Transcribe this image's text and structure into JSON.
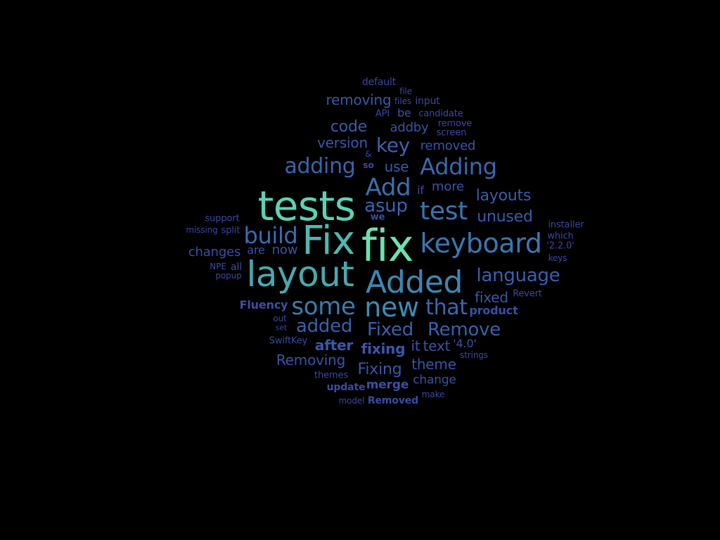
{
  "word_cloud": {
    "words": [
      {
        "id": "fix",
        "text": "fix",
        "color": "#6fe0b0"
      },
      {
        "id": "tests",
        "text": "tests",
        "color": "#5ed1b4"
      },
      {
        "id": "Fix",
        "text": "Fix",
        "color": "#4fb8b0"
      },
      {
        "id": "layout",
        "text": "layout",
        "color": "#4aa9b0"
      },
      {
        "id": "Added",
        "text": "Added",
        "color": "#3d88b4"
      },
      {
        "id": "new",
        "text": "new",
        "color": "#3d8cb4"
      },
      {
        "id": "some",
        "text": "some",
        "color": "#3a7cb0"
      },
      {
        "id": "keyboard",
        "text": "keyboard",
        "color": "#3a78b2"
      },
      {
        "id": "test",
        "text": "test",
        "color": "#3a74b0"
      },
      {
        "id": "Add",
        "text": "Add",
        "color": "#3a70ae"
      },
      {
        "id": "build",
        "text": "build",
        "color": "#3a6cb0"
      },
      {
        "id": "Adding",
        "text": "Adding",
        "color": "#3a68ae"
      },
      {
        "id": "adding",
        "text": "adding",
        "color": "#3a64ac"
      },
      {
        "id": "that",
        "text": "that",
        "color": "#3a68b0"
      },
      {
        "id": "key",
        "text": "key",
        "color": "#3a64ae"
      },
      {
        "id": "asup",
        "text": "asup",
        "color": "#3a64ae"
      },
      {
        "id": "language",
        "text": "language",
        "color": "#3a60ac"
      },
      {
        "id": "Fixed",
        "text": "Fixed",
        "color": "#3a60ac"
      },
      {
        "id": "Remove",
        "text": "Remove",
        "color": "#3a60ac"
      },
      {
        "id": "added",
        "text": "added",
        "color": "#3a60ac"
      },
      {
        "id": "layouts",
        "text": "layouts",
        "color": "#3a5caa"
      },
      {
        "id": "unused",
        "text": "unused",
        "color": "#3a5caa"
      },
      {
        "id": "code",
        "text": "code",
        "color": "#3a5caa"
      },
      {
        "id": "fixing",
        "text": "fixing",
        "color": "#3a58a8"
      },
      {
        "id": "Fixing",
        "text": "Fixing",
        "color": "#3a58a8"
      },
      {
        "id": "after",
        "text": "after",
        "color": "#3a58a8"
      },
      {
        "id": "version",
        "text": "version",
        "color": "#3a58a8"
      },
      {
        "id": "use",
        "text": "use",
        "color": "#3a58a8"
      },
      {
        "id": "removing",
        "text": "removing",
        "color": "#3a58a8"
      },
      {
        "id": "fixed",
        "text": "fixed",
        "color": "#3a58a8"
      },
      {
        "id": "Removing",
        "text": "Removing",
        "color": "#3a54a6"
      },
      {
        "id": "text",
        "text": "text",
        "color": "#3a54a6"
      },
      {
        "id": "theme",
        "text": "theme",
        "color": "#3a54a6"
      },
      {
        "id": "addby",
        "text": "addby",
        "color": "#3a54a6"
      },
      {
        "id": "it",
        "text": "it",
        "color": "#3a54a6"
      },
      {
        "id": "more",
        "text": "more",
        "color": "#3a54a6"
      },
      {
        "id": "removed",
        "text": "removed",
        "color": "#3a54a6"
      },
      {
        "id": "now",
        "text": "now",
        "color": "#3a54a6"
      },
      {
        "id": "changes",
        "text": "changes",
        "color": "#3a50a4"
      },
      {
        "id": "change",
        "text": "change",
        "color": "#3a50a4"
      },
      {
        "id": "merge",
        "text": "merge",
        "color": "#3a50a4"
      },
      {
        "id": "product",
        "text": "product",
        "color": "#3a50a4"
      },
      {
        "id": "Fluency",
        "text": "Fluency",
        "color": "#3a50a4"
      },
      {
        "id": "4.0",
        "text": "'4.0'",
        "color": "#3a50a4"
      },
      {
        "id": "be",
        "text": "be",
        "color": "#3a50a4"
      },
      {
        "id": "if",
        "text": "if",
        "color": "#3a50a4"
      },
      {
        "id": "are",
        "text": "are",
        "color": "#3a50a4"
      },
      {
        "id": "update",
        "text": "update",
        "color": "#3a4ca2"
      },
      {
        "id": "Removed",
        "text": "Removed",
        "color": "#3a4ca2"
      },
      {
        "id": "all",
        "text": "all",
        "color": "#3a4ca2"
      },
      {
        "id": "we",
        "text": "we",
        "color": "#3a4ca2"
      },
      {
        "id": "so",
        "text": "so",
        "color": "#3a4ca2"
      },
      {
        "id": "default",
        "text": "default",
        "color": "#3a48a0"
      },
      {
        "id": "file",
        "text": "file",
        "color": "#3a48a0"
      },
      {
        "id": "files",
        "text": "files",
        "color": "#3a48a0"
      },
      {
        "id": "input",
        "text": "input",
        "color": "#3a48a0"
      },
      {
        "id": "API",
        "text": "API",
        "color": "#3a48a0"
      },
      {
        "id": "candidate",
        "text": "candidate",
        "color": "#3a48a0"
      },
      {
        "id": "remove",
        "text": "remove",
        "color": "#3a48a0"
      },
      {
        "id": "screen",
        "text": "screen",
        "color": "#3a48a0"
      },
      {
        "id": "amp",
        "text": "&",
        "color": "#3a48a0"
      },
      {
        "id": "support",
        "text": "support",
        "color": "#3a48a0"
      },
      {
        "id": "missing",
        "text": "missing",
        "color": "#3a48a0"
      },
      {
        "id": "split",
        "text": "split",
        "color": "#3a48a0"
      },
      {
        "id": "NPE",
        "text": "NPE",
        "color": "#3a48a0"
      },
      {
        "id": "popup",
        "text": "popup",
        "color": "#3a48a0"
      },
      {
        "id": "installer",
        "text": "installer",
        "color": "#3a48a0"
      },
      {
        "id": "which",
        "text": "which",
        "color": "#3a48a0"
      },
      {
        "id": "2.2.0",
        "text": "'2.2.0'",
        "color": "#3a48a0"
      },
      {
        "id": "keys",
        "text": "keys",
        "color": "#3a48a0"
      },
      {
        "id": "Revert",
        "text": "Revert",
        "color": "#3a48a0"
      },
      {
        "id": "out",
        "text": "out",
        "color": "#3a48a0"
      },
      {
        "id": "set",
        "text": "set",
        "color": "#3a48a0"
      },
      {
        "id": "SwiftKey",
        "text": "SwiftKey",
        "color": "#3a48a0"
      },
      {
        "id": "strings",
        "text": "strings",
        "color": "#3a48a0"
      },
      {
        "id": "themes",
        "text": "themes",
        "color": "#3a48a0"
      },
      {
        "id": "model",
        "text": "model",
        "color": "#3a48a0"
      },
      {
        "id": "make",
        "text": "make",
        "color": "#3a48a0"
      }
    ]
  }
}
